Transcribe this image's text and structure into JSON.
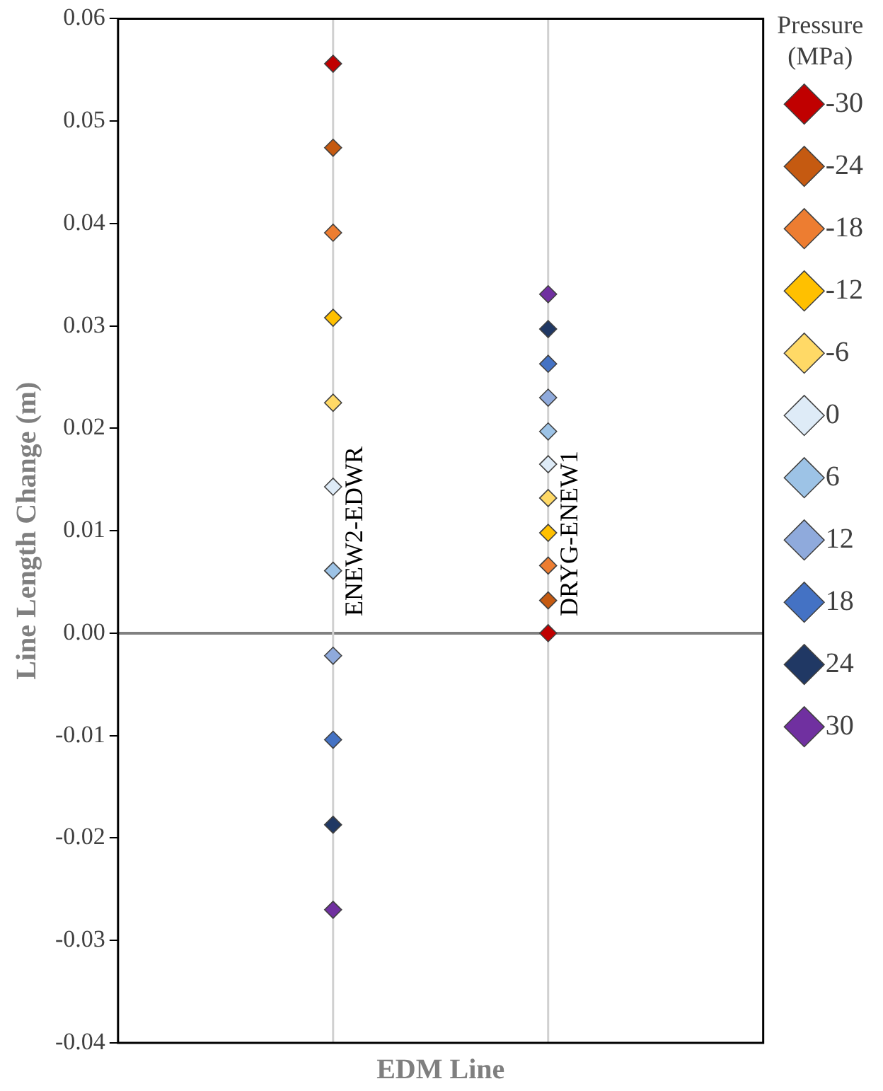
{
  "chart_data": {
    "type": "scatter",
    "xlabel": "EDM Line",
    "ylabel": "Line Length Change (m)",
    "legend_title": "Pressure (MPa)",
    "legend": "right",
    "marker": "diamond",
    "categories": [
      "ENEW2-EDWR",
      "DRYG-ENEW1"
    ],
    "ylim": [
      -0.04,
      0.06
    ],
    "yticks": [
      -0.04,
      -0.03,
      -0.02,
      -0.01,
      {
        "value": 0,
        "label": "0.00"
      },
      0.01,
      0.02,
      0.03,
      0.04,
      0.05,
      0.06
    ],
    "ref_lines": [
      {
        "axis": "x",
        "value": "ENEW2-EDWR",
        "color": "#d0d0d0"
      },
      {
        "axis": "x",
        "value": "DRYG-ENEW1",
        "color": "#d0d0d0"
      }
    ],
    "series": [
      {
        "name": "-30",
        "color": "#c00000",
        "values": [
          0.0556,
          0
        ]
      },
      {
        "name": "-24",
        "color": "#c55a11",
        "values": [
          0.0474,
          0.0032
        ]
      },
      {
        "name": "-18",
        "color": "#ed7d31",
        "values": [
          0.0391,
          0.0066
        ]
      },
      {
        "name": "-12",
        "color": "#ffc000",
        "values": [
          0.0308,
          0.0098
        ]
      },
      {
        "name": "-6",
        "color": "#ffd966",
        "values": [
          0.0225,
          0.0132
        ]
      },
      {
        "name": "0",
        "color": "#deebf7",
        "values": [
          0.0143,
          0.0165
        ]
      },
      {
        "name": "6",
        "color": "#9dc3e6",
        "values": [
          0.0061,
          0.0197
        ]
      },
      {
        "name": "12",
        "color": "#8faadc",
        "values": [
          -0.0022,
          0.023
        ]
      },
      {
        "name": "18",
        "color": "#4472c4",
        "values": [
          -0.0104,
          0.0263
        ]
      },
      {
        "name": "24",
        "color": "#203864",
        "values": [
          -0.0187,
          0.0297
        ]
      },
      {
        "name": "30",
        "color": "#7030a0",
        "values": [
          -0.027,
          0.0331
        ]
      }
    ]
  }
}
